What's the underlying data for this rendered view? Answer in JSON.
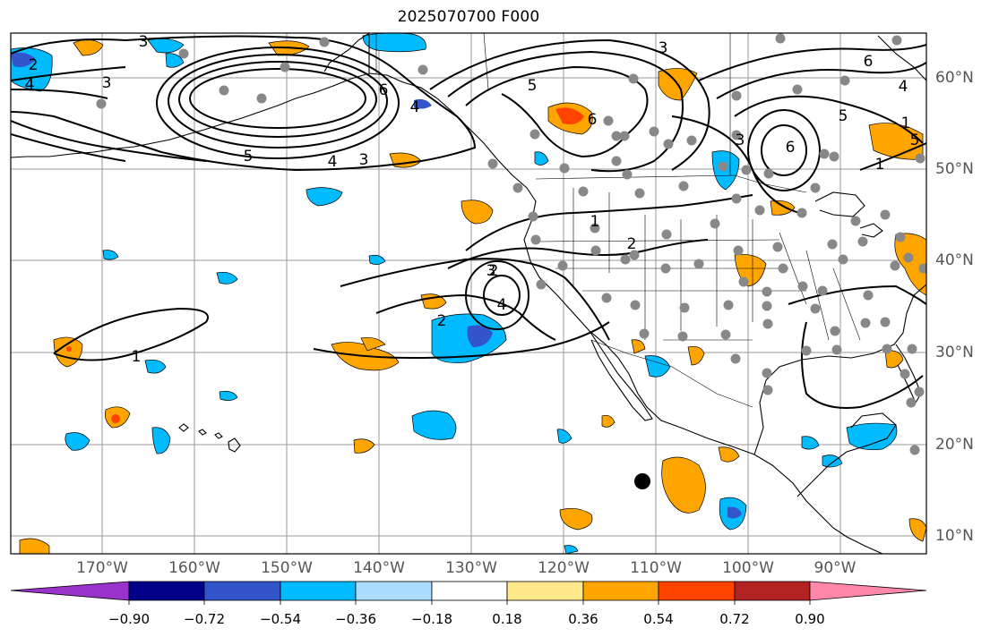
{
  "title": "2025070700 F000",
  "lon_ticks": [
    "170°W",
    "160°W",
    "150°W",
    "140°W",
    "130°W",
    "120°W",
    "110°W",
    "100°W",
    "90°W"
  ],
  "lat_ticks": [
    "60°N",
    "50°N",
    "40°N",
    "30°N",
    "20°N",
    "10°N"
  ],
  "contour_labels": [
    "2",
    "4",
    "3",
    "3",
    "5",
    "4",
    "3",
    "6",
    "3",
    "5",
    "6",
    "4",
    "5",
    "1",
    "1",
    "2",
    "3",
    "3",
    "4",
    "2",
    "1",
    "6",
    "4",
    "5",
    "6",
    "1",
    "2"
  ],
  "colorbar": {
    "labels": [
      "−0.90",
      "−0.72",
      "−0.54",
      "−0.36",
      "−0.18",
      "0.18",
      "0.36",
      "0.54",
      "0.72",
      "0.90"
    ],
    "colors": [
      "#9933cc",
      "#000088",
      "#3355cc",
      "#00bbff",
      "#aaddff",
      "#ffffff",
      "#ffe88a",
      "#ffa500",
      "#ff4400",
      "#b22222",
      "#ff88aa"
    ]
  }
}
